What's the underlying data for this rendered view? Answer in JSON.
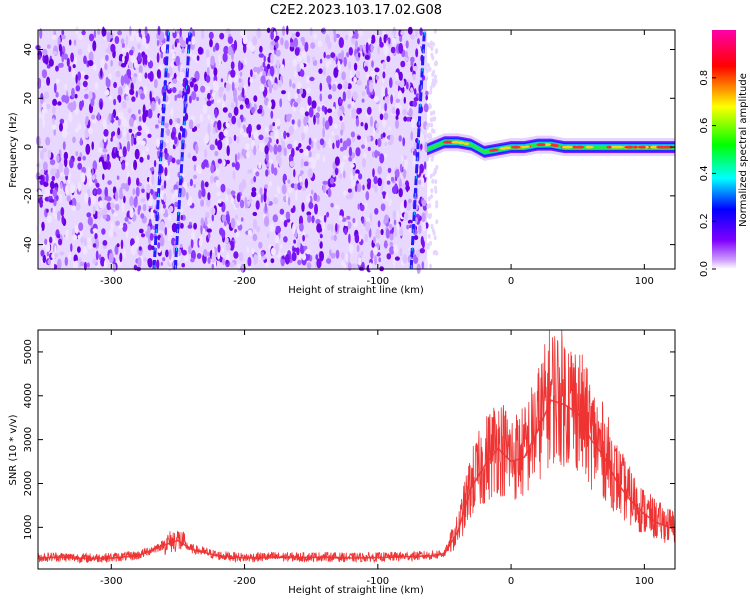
{
  "title": "C2E2.2023.103.17.02.G08",
  "chart_data": [
    {
      "type": "heatmap",
      "xlabel": "Height of straight line (km)",
      "ylabel": "Frequency (Hz)",
      "xlim": [
        -355,
        123
      ],
      "ylim": [
        -50,
        48
      ],
      "xticks": [
        -300,
        -200,
        -100,
        0,
        100
      ],
      "yticks": [
        -40,
        -20,
        0,
        20,
        40
      ],
      "colorbar": {
        "label": "Normalized spectral amplitude",
        "range": [
          0,
          1
        ],
        "ticks": [
          0.0,
          0.2,
          0.4,
          0.6,
          0.8
        ],
        "colormap": [
          "#ffffff",
          "#cc99ff",
          "#8000ff",
          "#0000ff",
          "#00ffff",
          "#00ff00",
          "#ffff00",
          "#ff0000",
          "#ff00aa"
        ]
      },
      "noise_region_x": [
        -355,
        -63
      ],
      "signal_band": {
        "x": [
          -63,
          -50,
          -40,
          -30,
          -20,
          -10,
          0,
          10,
          20,
          30,
          40,
          50,
          60,
          70,
          80,
          90,
          100,
          110,
          123
        ],
        "freq": [
          -1,
          2,
          2,
          1,
          -2,
          -1,
          0,
          0,
          1,
          1,
          0,
          0,
          0,
          0,
          0,
          0,
          0,
          0,
          0
        ]
      },
      "diagonal_streaks": [
        {
          "x": [
            -268,
            -257
          ],
          "freq": [
            -50,
            48
          ]
        },
        {
          "x": [
            -252,
            -241
          ],
          "freq": [
            -50,
            48
          ]
        },
        {
          "x": [
            -75,
            -65
          ],
          "freq": [
            -50,
            48
          ]
        }
      ]
    },
    {
      "type": "line",
      "xlabel": "Height of straight line (km)",
      "ylabel": "SNR (10 * v/v)",
      "xlim": [
        -355,
        123
      ],
      "ylim": [
        50,
        5500
      ],
      "xticks": [
        -300,
        -200,
        -100,
        0,
        100
      ],
      "yticks": [
        1000,
        2000,
        3000,
        4000,
        5000
      ],
      "color": "#ee3333",
      "series": [
        {
          "x": [
            -355,
            -340,
            -320,
            -300,
            -280,
            -260,
            -250,
            -240,
            -220,
            -200,
            -180,
            -160,
            -140,
            -120,
            -100,
            -80,
            -60,
            -50,
            -40,
            -30,
            -20,
            -10,
            0,
            10,
            20,
            30,
            40,
            50,
            60,
            70,
            80,
            90,
            100,
            110,
            123
          ],
          "values": [
            300,
            320,
            290,
            300,
            350,
            600,
            700,
            500,
            350,
            300,
            320,
            310,
            320,
            300,
            310,
            330,
            350,
            400,
            900,
            1900,
            2400,
            2800,
            2500,
            2600,
            3200,
            3900,
            3800,
            3600,
            3000,
            2600,
            2000,
            1600,
            1300,
            1100,
            950
          ]
        }
      ]
    }
  ]
}
